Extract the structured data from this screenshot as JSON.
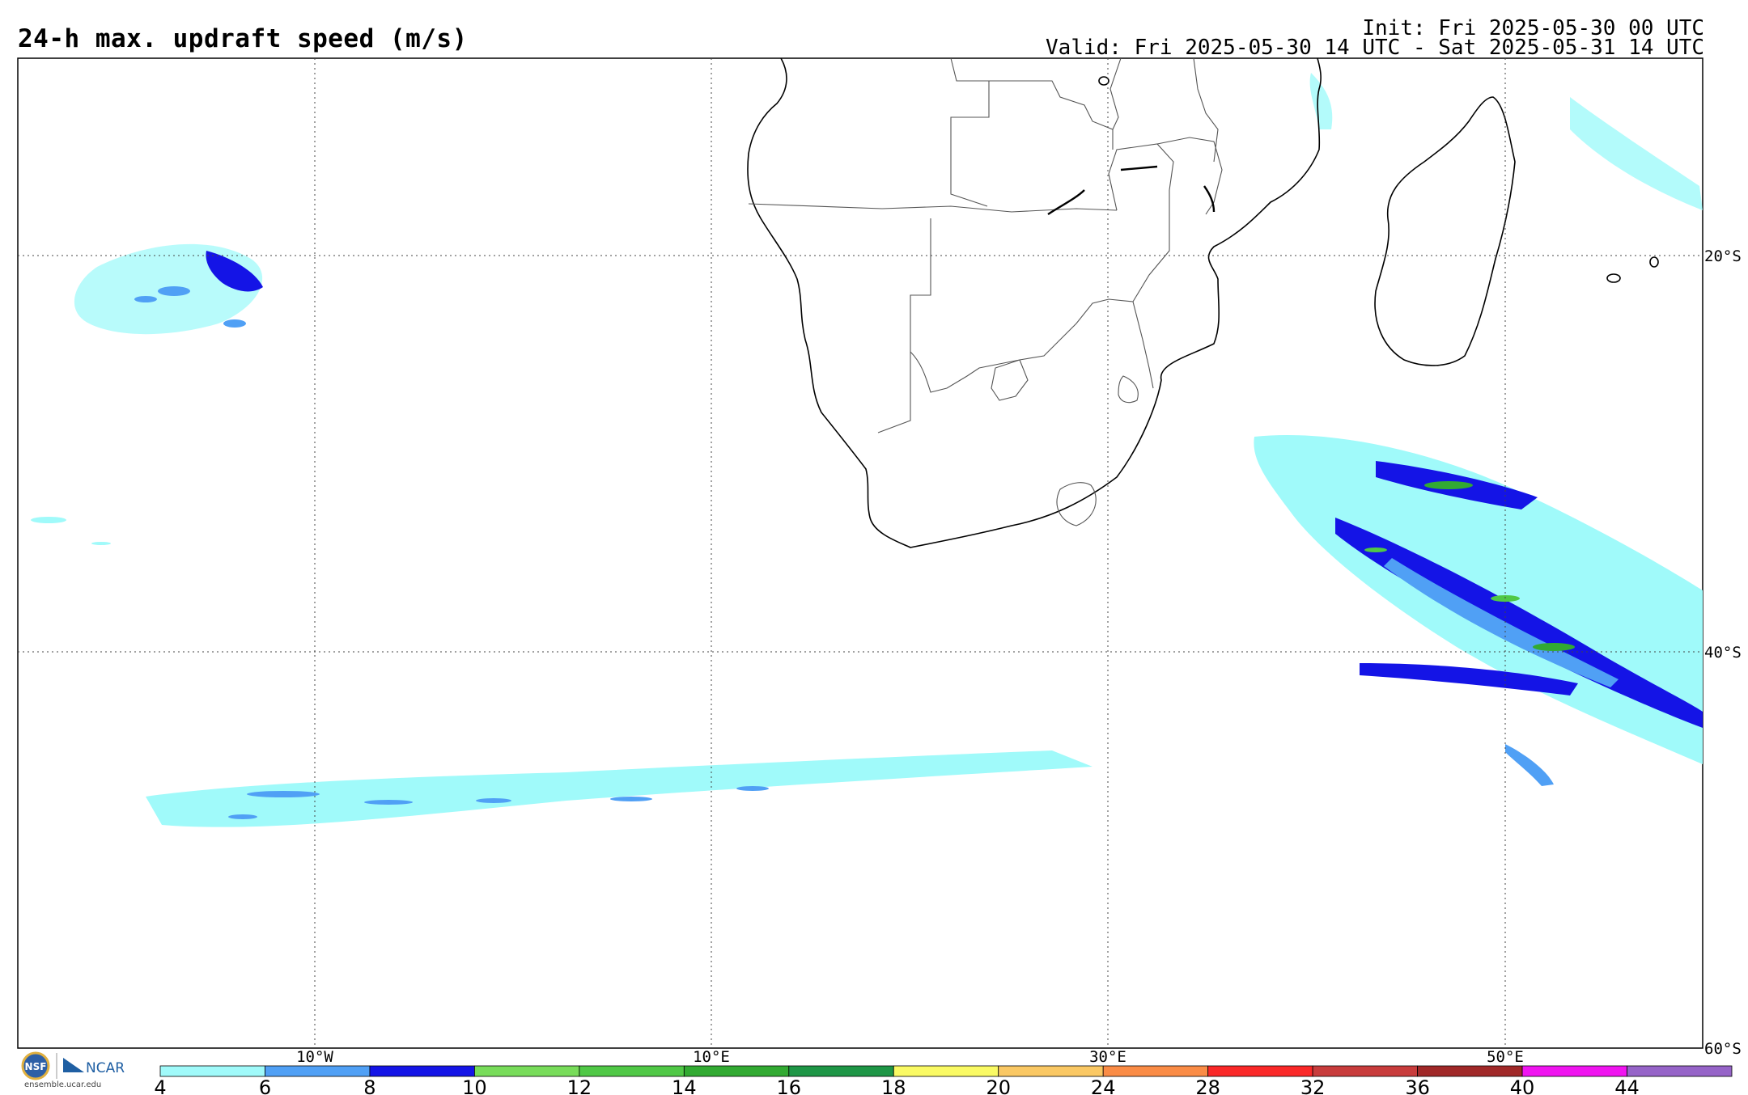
{
  "map": {
    "title": "24-h max. updraft speed (m/s)",
    "init": "Init: Fri 2025-05-30 00 UTC",
    "valid": "Valid: Fri 2025-05-30 14 UTC - Sat 2025-05-31 14 UTC",
    "lon_labels": [
      "10°W",
      "10°E",
      "30°E",
      "50°E"
    ],
    "lat_labels": [
      "20°S",
      "40°S",
      "60°S"
    ],
    "colorbar": {
      "ticks": [
        "4",
        "6",
        "8",
        "10",
        "12",
        "14",
        "16",
        "18",
        "20",
        "24",
        "28",
        "32",
        "36",
        "40",
        "44"
      ],
      "colors": [
        "#a0fafa",
        "#50a0f5",
        "#1414e6",
        "#78dc5a",
        "#50c846",
        "#32aa32",
        "#1e9646",
        "#fafa64",
        "#fac864",
        "#fa8c46",
        "#fa2828",
        "#c83c3c",
        "#a02828",
        "#f014f0",
        "#9664c8"
      ]
    },
    "logo": {
      "org1": "NSF",
      "org2": "NCAR",
      "url": "ensemble.ucar.edu"
    }
  }
}
